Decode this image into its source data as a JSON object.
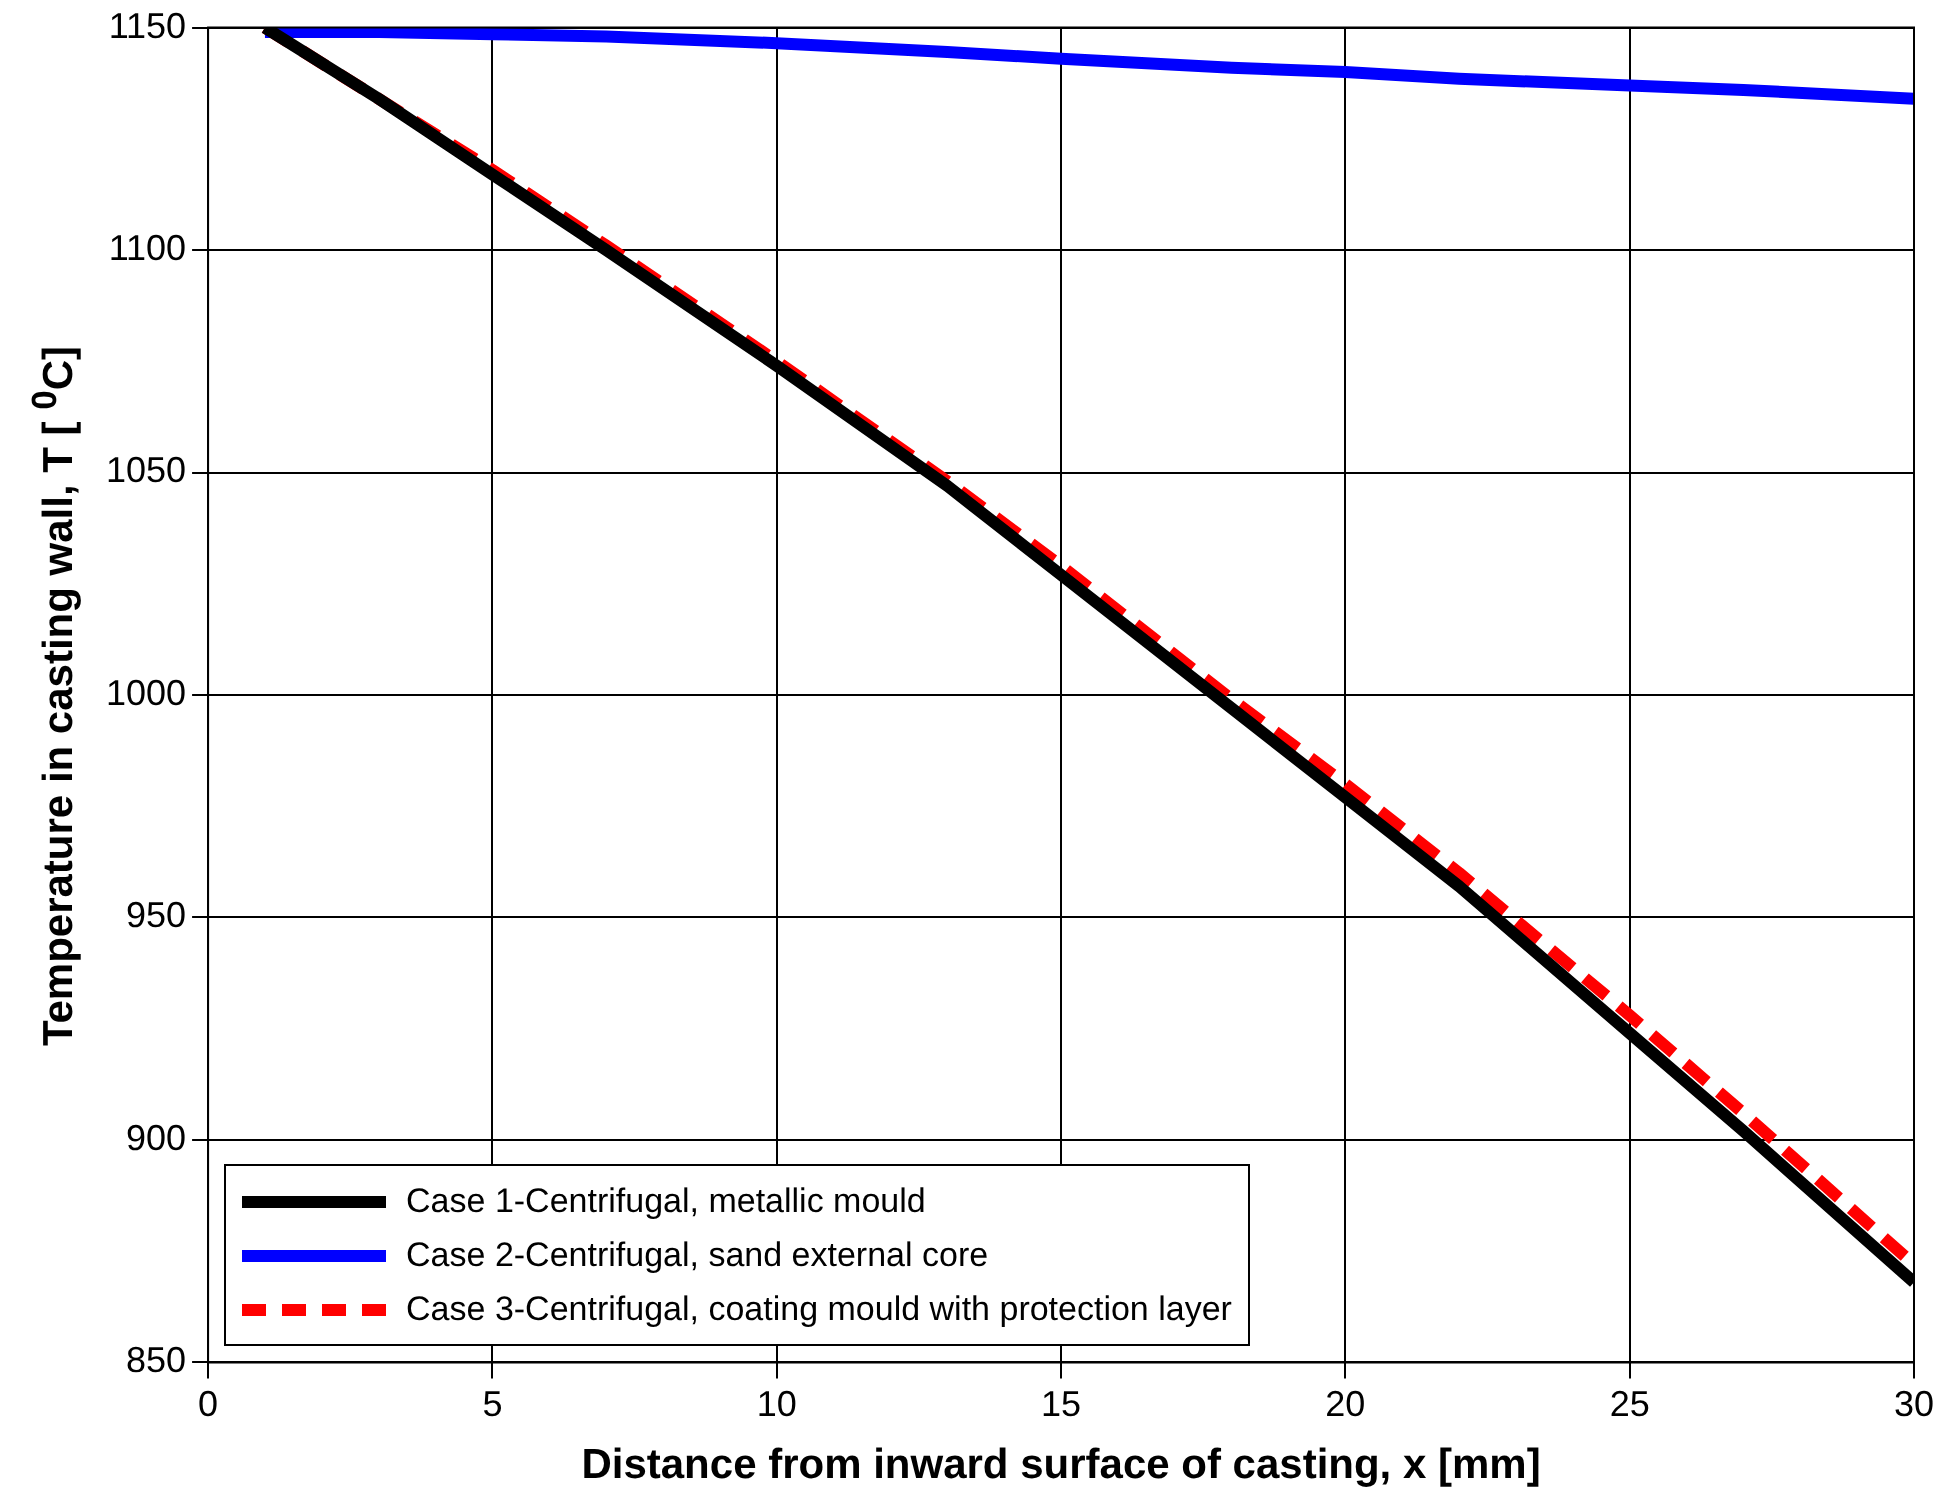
{
  "chart_data": {
    "type": "line",
    "xlabel": "Distance from inward surface of casting, x [mm]",
    "ylabel": "Temperature in casting wall, T [ $^{0}$C]",
    "xlim": [
      0,
      30
    ],
    "xticks": [
      0,
      5,
      10,
      15,
      20,
      25,
      30
    ],
    "ylim": [
      850,
      1150
    ],
    "yticks": [
      850,
      900,
      950,
      1000,
      1050,
      1100,
      1150
    ],
    "grid": true,
    "legend": "bottom left",
    "marker": "none",
    "series": [
      {
        "name": "Case 1-Centrifugal, metallic mould",
        "color": "#000000",
        "line_style": "solid",
        "x": [
          1,
          3,
          5,
          7,
          10,
          13,
          15,
          18,
          20,
          22,
          25,
          27,
          30
        ],
        "values": [
          1150,
          1134,
          1117,
          1100,
          1074,
          1047,
          1027,
          997,
          977,
          957,
          924,
          902,
          868
        ]
      },
      {
        "name": "Case 2-Centrifugal, sand external core",
        "color": "#0000ff",
        "line_style": "solid",
        "x": [
          1,
          3,
          5,
          7,
          10,
          13,
          15,
          18,
          20,
          22,
          25,
          27,
          30
        ],
        "values": [
          1149,
          1149,
          1148.5,
          1148,
          1146.5,
          1144.5,
          1143,
          1141,
          1140,
          1138.5,
          1137,
          1136,
          1134
        ]
      },
      {
        "name": "Case 3-Centrifugal, coating mould with protection layer",
        "color": "#ff0000",
        "line_style": "dashed",
        "x": [
          1,
          3,
          5,
          7,
          10,
          13,
          15,
          18,
          20,
          22,
          25,
          27,
          30
        ],
        "values": [
          1150,
          1134,
          1118,
          1101,
          1075,
          1048,
          1029,
          999,
          980,
          960,
          928,
          906,
          872
        ]
      }
    ]
  }
}
